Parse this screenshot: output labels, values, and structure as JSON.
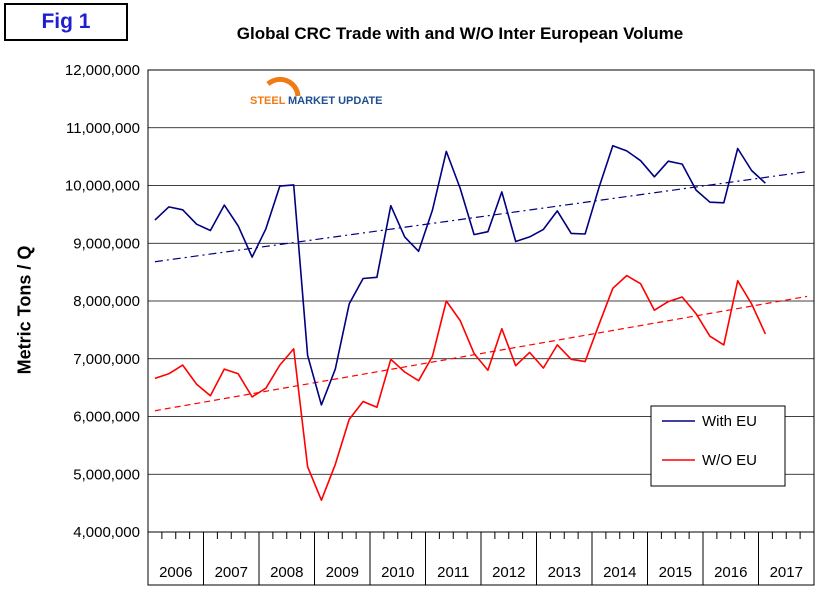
{
  "fig_label": "Fig 1",
  "logo": {
    "word1": "STEEL",
    "word2": "MARKET UPDATE"
  },
  "chart_data": {
    "type": "line",
    "title": "Global CRC Trade with and W/O Inter European Volume",
    "ylabel": "Metric Tons / Q",
    "xlabel": "",
    "ylim": [
      4000000,
      12000000
    ],
    "yticks": [
      4000000,
      5000000,
      6000000,
      7000000,
      8000000,
      9000000,
      10000000,
      11000000,
      12000000
    ],
    "ytick_labels": [
      "4,000,000",
      "5,000,000",
      "6,000,000",
      "7,000,000",
      "8,000,000",
      "9,000,000",
      "10,000,000",
      "11,000,000",
      "12,000,000"
    ],
    "years": [
      "2006",
      "2007",
      "2008",
      "2009",
      "2010",
      "2011",
      "2012",
      "2013",
      "2014",
      "2015",
      "2016",
      "2017"
    ],
    "quarters_per_year": 4,
    "grid": true,
    "legend_position": "bottom-right",
    "series": [
      {
        "name": "With EU",
        "color": "#000080",
        "style": "solid",
        "values": [
          9400000,
          9630000,
          9580000,
          9330000,
          9220000,
          9660000,
          9300000,
          8760000,
          9250000,
          9990000,
          10010000,
          7060000,
          6200000,
          6820000,
          7950000,
          8390000,
          8410000,
          9650000,
          9110000,
          8860000,
          9570000,
          10590000,
          9950000,
          9150000,
          9200000,
          9890000,
          9030000,
          9110000,
          9240000,
          9560000,
          9170000,
          9160000,
          9960000,
          10690000,
          10600000,
          10430000,
          10150000,
          10420000,
          10370000,
          9920000,
          9710000,
          9700000,
          10640000,
          10260000,
          10040000
        ]
      },
      {
        "name": "W/O EU",
        "color": "#ff0000",
        "style": "solid",
        "values": [
          6660000,
          6740000,
          6890000,
          6560000,
          6360000,
          6820000,
          6740000,
          6340000,
          6490000,
          6890000,
          7170000,
          5130000,
          4550000,
          5170000,
          5950000,
          6260000,
          6160000,
          6990000,
          6770000,
          6620000,
          7040000,
          8000000,
          7660000,
          7090000,
          6800000,
          7520000,
          6880000,
          7110000,
          6840000,
          7240000,
          6990000,
          6950000,
          7590000,
          8220000,
          8440000,
          8300000,
          7840000,
          7990000,
          8070000,
          7780000,
          7390000,
          7240000,
          8350000,
          7950000,
          7430000
        ]
      }
    ],
    "trendlines": [
      {
        "series": "With EU",
        "color": "#000080",
        "style": "dash-dot",
        "start": 8680000,
        "end": 10240000
      },
      {
        "series": "W/O EU",
        "color": "#ff0000",
        "style": "dashed",
        "start": 6100000,
        "end": 8080000
      }
    ]
  }
}
